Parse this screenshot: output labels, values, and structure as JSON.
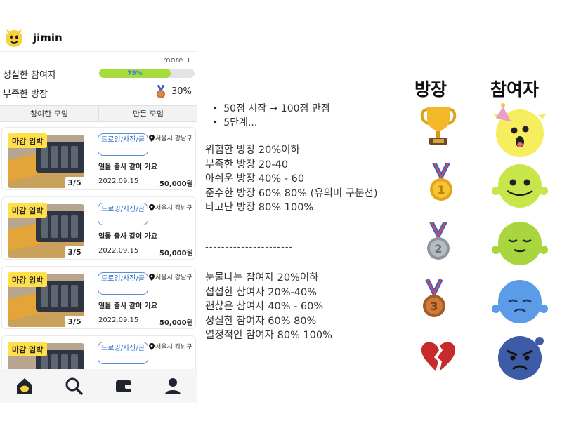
{
  "header": {
    "username": "jimin"
  },
  "stats": {
    "more_label": "more +",
    "participant_label": "성실한 참여자",
    "participant_progress_text": "75%",
    "participant_progress": 0.75,
    "owner_label": "부족한 방장",
    "owner_percent": "30%"
  },
  "tabs": [
    {
      "label": "참여한 모임"
    },
    {
      "label": "만든 모임"
    }
  ],
  "cards": [
    {
      "badge": "마감 임박",
      "count": "3/5",
      "category": "드로잉/사진/글",
      "location": "서울시 강남구",
      "title": "일몰 출사 같이 가요",
      "date": "2022.09.15",
      "price": "50,000원"
    },
    {
      "badge": "마감 임박",
      "count": "3/5",
      "category": "드로잉/사진/글",
      "location": "서울시 강남구",
      "title": "일몰 출사 같이 가요",
      "date": "2022.09.15",
      "price": "50,000원"
    },
    {
      "badge": "마감 임박",
      "count": "3/5",
      "category": "드로잉/사진/글",
      "location": "서울시 강남구",
      "title": "일몰 출사 같이 가요",
      "date": "2022.09.15",
      "price": "50,000원"
    },
    {
      "badge": "마감 임박",
      "category": "드로잉/사진/글",
      "location": "서울시 강남구"
    }
  ],
  "nav": [
    {
      "icon": "home-icon"
    },
    {
      "icon": "search-icon"
    },
    {
      "icon": "wallet-icon"
    },
    {
      "icon": "user-icon"
    }
  ],
  "notes": {
    "bullets": [
      "50점 시작 → 100점 만점",
      "5단계..."
    ],
    "owner_tiers": [
      "위험한 방장 20%이하",
      "부족한 방장  20-40",
      "아쉬운 방장 40% - 60",
      "준수한 방장  60% 80% (유의미 구분선)",
      "타고난 방장 80% 100%"
    ],
    "divider": "----------------------",
    "participant_tiers": [
      "눈물나는 참여자 20%이하",
      "섭섭한 참여자  20%-40%",
      "괜찮은 참여자 40% - 60%",
      "성실한 참여자 60% 80%",
      "열정적인 참여자 80% 100%"
    ]
  },
  "columns": {
    "owner_title": "방장",
    "participant_title": "참여자",
    "owner_icons": [
      "trophy-icon",
      "gold-medal-icon",
      "silver-medal-icon",
      "bronze-medal-icon",
      "broken-heart-icon"
    ],
    "participant_icons": [
      "party-face-icon",
      "happy-face-icon",
      "calm-face-icon",
      "sad-face-icon",
      "angry-face-icon"
    ]
  },
  "colors": {
    "progress_fill": "#a7dc3d",
    "badge_yellow": "#ffe04a",
    "chip_border": "#5b8fd9",
    "face_yellow": "#f6ee5e",
    "face_lime": "#c6e64a",
    "face_green": "#a9d53e",
    "face_blue": "#5b9be8",
    "face_navy": "#3d5ba6"
  }
}
